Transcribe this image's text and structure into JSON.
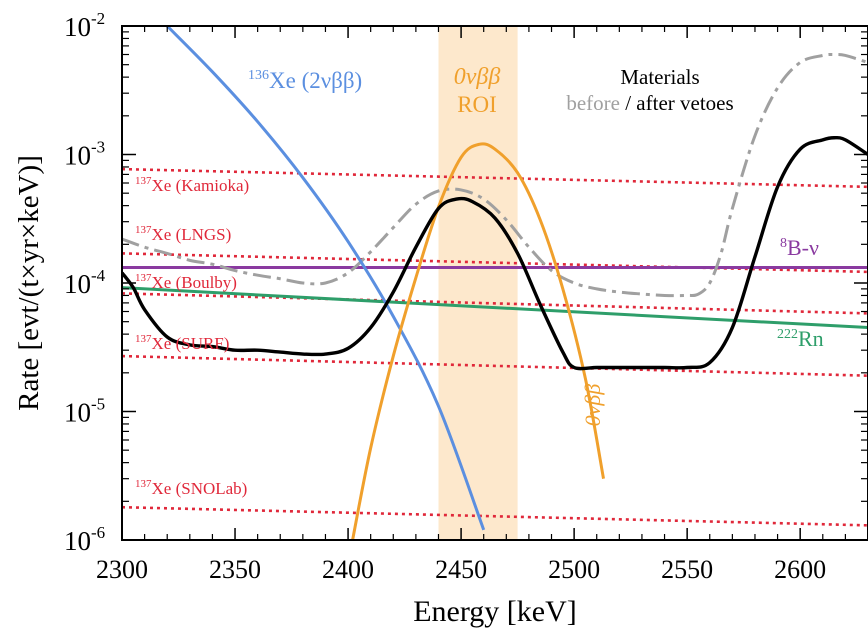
{
  "chart_data": {
    "type": "line",
    "xlabel": "Energy [keV]",
    "ylabel": "Rate [evt/(t×yr×keV)]",
    "xlim": [
      2300,
      2630
    ],
    "ylim": [
      1e-06,
      0.01
    ],
    "yscale": "log",
    "x_ticks": [
      "2300",
      "2350",
      "2400",
      "2450",
      "2500",
      "2550",
      "2600"
    ],
    "y_ticks": [
      {
        "base": "10",
        "exp": "-6"
      },
      {
        "base": "10",
        "exp": "-5"
      },
      {
        "base": "10",
        "exp": "-4"
      },
      {
        "base": "10",
        "exp": "-3"
      },
      {
        "base": "10",
        "exp": "-2"
      }
    ],
    "roi": {
      "x": [
        2440,
        2475
      ],
      "color": "#fde8cc",
      "label_top": "0νββ",
      "label_bottom": "ROI"
    },
    "series": [
      {
        "key": "xe136",
        "color": "#5b8fe0",
        "style": "solid",
        "label": {
          "sup": "136",
          "text": "Xe (2νββ)"
        },
        "x": [
          2320,
          2340,
          2360,
          2380,
          2400,
          2420,
          2440,
          2460
        ],
        "y": [
          0.01,
          0.0044,
          0.0018,
          0.00066,
          0.00021,
          5.5e-05,
          1.1e-05,
          1.2e-06
        ]
      },
      {
        "key": "onbb",
        "color": "#f0a02c",
        "style": "solid",
        "label": {
          "text": "0νββ"
        },
        "x": [
          2402,
          2410,
          2420,
          2430,
          2440,
          2450,
          2458,
          2465,
          2475,
          2485,
          2495,
          2505,
          2513
        ],
        "y": [
          1e-06,
          5.2e-06,
          2.7e-05,
          0.00011,
          0.00039,
          0.00095,
          0.0012,
          0.0011,
          0.00072,
          0.00031,
          9e-05,
          1.8e-05,
          3e-06
        ]
      },
      {
        "key": "mat_after",
        "color": "#000000",
        "style": "solid",
        "x": [
          2300,
          2305,
          2310,
          2320,
          2330,
          2340,
          2350,
          2360,
          2370,
          2380,
          2390,
          2400,
          2410,
          2420,
          2430,
          2440,
          2448,
          2455,
          2465,
          2475,
          2485,
          2495,
          2500,
          2510,
          2520,
          2530,
          2540,
          2550,
          2560,
          2570,
          2580,
          2590,
          2600,
          2610,
          2615,
          2620,
          2630
        ],
        "y": [
          0.00012,
          9.2e-05,
          6.2e-05,
          3.8e-05,
          3.3e-05,
          3.2e-05,
          3e-05,
          3e-05,
          2.9e-05,
          2.8e-05,
          2.8e-05,
          3.1e-05,
          4.5e-05,
          8.5e-05,
          0.00019,
          0.00038,
          0.00045,
          0.00043,
          0.00032,
          0.00017,
          6.8e-05,
          2.9e-05,
          2.2e-05,
          2.2e-05,
          2.2e-05,
          2.2e-05,
          2.2e-05,
          2.2e-05,
          2.4e-05,
          4.5e-05,
          0.00016,
          0.00056,
          0.0011,
          0.0013,
          0.00135,
          0.0013,
          0.001
        ]
      },
      {
        "key": "mat_before",
        "color": "#a0a0a0",
        "style": "dashdot",
        "x": [
          2300,
          2310,
          2320,
          2330,
          2340,
          2350,
          2360,
          2370,
          2380,
          2390,
          2400,
          2410,
          2420,
          2430,
          2440,
          2450,
          2460,
          2470,
          2480,
          2490,
          2500,
          2510,
          2520,
          2530,
          2540,
          2550,
          2555,
          2560,
          2565,
          2570,
          2580,
          2590,
          2600,
          2610,
          2615,
          2620,
          2630
        ],
        "y": [
          0.00022,
          0.00019,
          0.00017,
          0.00015,
          0.00014,
          0.000125,
          0.000115,
          0.000108,
          0.0001,
          0.0001,
          0.00012,
          0.000175,
          0.00027,
          0.00041,
          0.00052,
          0.00053,
          0.00045,
          0.00031,
          0.00019,
          0.000125,
          0.0001,
          9e-05,
          8.5e-05,
          8.2e-05,
          8e-05,
          8e-05,
          8.2e-05,
          0.0001,
          0.00017,
          0.00038,
          0.0014,
          0.0033,
          0.0052,
          0.0059,
          0.006,
          0.0059,
          0.0052
        ]
      },
      {
        "key": "b8",
        "color": "#8a3aa0",
        "style": "solid",
        "label": {
          "sup": "8",
          "text": "B-ν"
        },
        "x": [
          2300,
          2630
        ],
        "y": [
          0.000132,
          0.000132
        ]
      },
      {
        "key": "rn222",
        "color": "#2e9e6a",
        "style": "solid",
        "label": {
          "sup": "222",
          "text": "Rn"
        },
        "x": [
          2300,
          2630
        ],
        "y": [
          9.2e-05,
          4.5e-05
        ]
      },
      {
        "key": "kamioka",
        "color": "#e0283a",
        "style": "dotted",
        "label": {
          "sup": "137",
          "text": "Xe (Kamioka)"
        },
        "x": [
          2300,
          2630
        ],
        "y": [
          0.00077,
          0.00056
        ]
      },
      {
        "key": "lngs",
        "color": "#e0283a",
        "style": "dotted",
        "label": {
          "sup": "137",
          "text": "Xe (LNGS)"
        },
        "x": [
          2300,
          2630
        ],
        "y": [
          0.00017,
          0.000122
        ]
      },
      {
        "key": "boulby",
        "color": "#e0283a",
        "style": "dotted",
        "label": {
          "sup": "137",
          "text": "Xe (Boulby)"
        },
        "x": [
          2300,
          2630
        ],
        "y": [
          8.3e-05,
          5.8e-05
        ]
      },
      {
        "key": "surf",
        "color": "#e0283a",
        "style": "dotted",
        "label": {
          "sup": "137",
          "text": "Xe (SURF)"
        },
        "x": [
          2300,
          2630
        ],
        "y": [
          2.7e-05,
          1.9e-05
        ]
      },
      {
        "key": "snolab",
        "color": "#e0283a",
        "style": "dotted",
        "label": {
          "sup": "137",
          "text": "Xe (SNOLab)"
        },
        "x": [
          2300,
          2630
        ],
        "y": [
          1.8e-06,
          1.3e-06
        ]
      }
    ],
    "legend_materials": {
      "title": "Materials",
      "before": "before",
      "separator": " / ",
      "after": "after vetoes"
    }
  }
}
